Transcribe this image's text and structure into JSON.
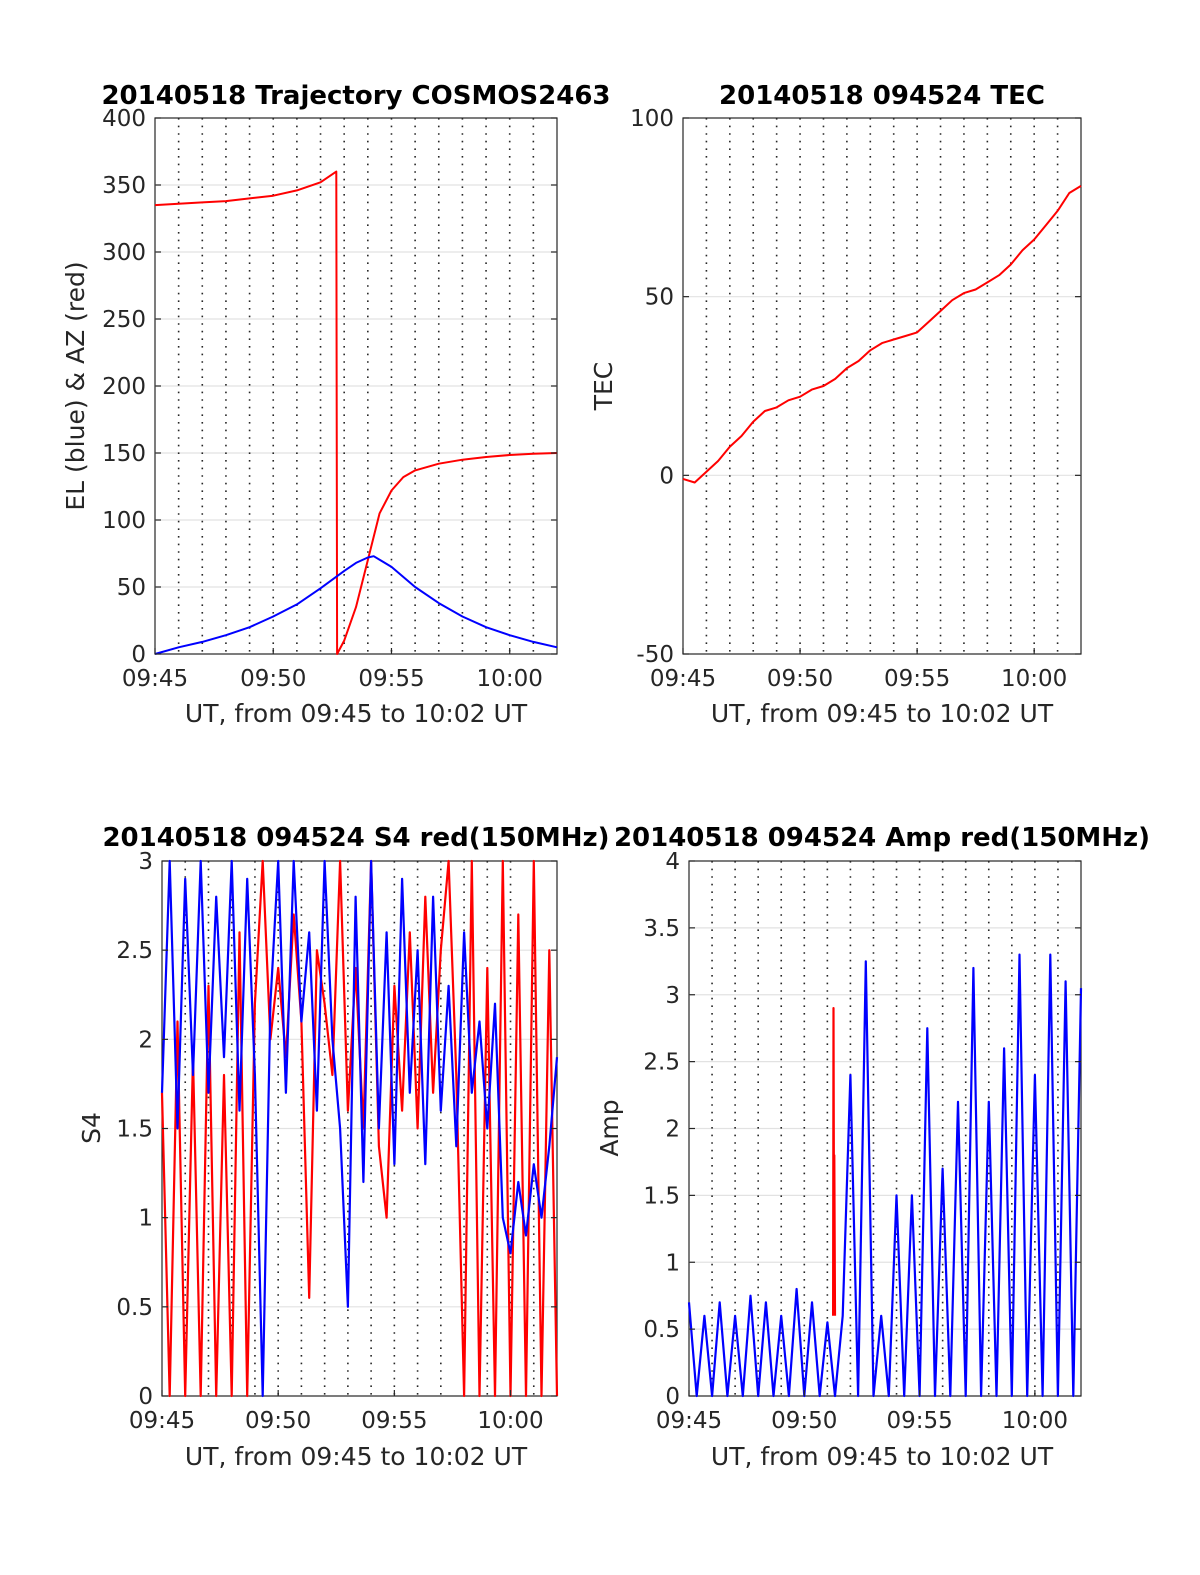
{
  "chart_data": [
    {
      "type": "line",
      "title": "20140518 Trajectory COSMOS2463",
      "xlabel": "UT, from 09:45 to 10:02 UT",
      "ylabel": "EL (blue) & AZ (red)",
      "xlim": [
        "09:45",
        "10:02"
      ],
      "xticks": [
        "09:45",
        "09:50",
        "09:55",
        "10:00"
      ],
      "ylim": [
        0,
        400
      ],
      "yticks": [
        "0",
        "50",
        "100",
        "150",
        "200",
        "250",
        "300",
        "350",
        "400"
      ],
      "grid": true,
      "series": [
        {
          "color": "#ff0000",
          "x": [
            "09:45:00",
            "09:46:00",
            "09:47:00",
            "09:48:00",
            "09:49:00",
            "09:50:00",
            "09:51:00",
            "09:52:00",
            "09:52:40",
            "09:52:42",
            "09:53:00",
            "09:53:30",
            "09:54:00",
            "09:54:30",
            "09:55:00",
            "09:55:30",
            "09:56:00",
            "09:57:00",
            "09:58:00",
            "09:59:00",
            "10:00:00",
            "10:01:00",
            "10:02:00"
          ],
          "values": [
            335,
            336,
            337,
            338,
            340,
            342,
            346,
            352,
            360,
            0,
            10,
            35,
            70,
            105,
            122,
            132,
            137,
            142,
            145,
            147,
            148.5,
            149.5,
            150
          ]
        },
        {
          "color": "#0000ff",
          "x": [
            "09:45:00",
            "09:46:00",
            "09:47:00",
            "09:48:00",
            "09:49:00",
            "09:50:00",
            "09:51:00",
            "09:52:00",
            "09:53:00",
            "09:53:30",
            "09:54:00",
            "09:54:15",
            "09:55:00",
            "09:56:00",
            "09:57:00",
            "09:58:00",
            "09:59:00",
            "10:00:00",
            "10:01:00",
            "10:02:00"
          ],
          "values": [
            0,
            5,
            9,
            14,
            20,
            28,
            37,
            49,
            62,
            68,
            72,
            73,
            65,
            50,
            38,
            28,
            20,
            14,
            9,
            5
          ]
        }
      ]
    },
    {
      "type": "line",
      "title": "20140518 094524 TEC",
      "xlabel": "UT, from 09:45 to 10:02 UT",
      "ylabel": "TEC",
      "xlim": [
        "09:45",
        "10:02"
      ],
      "xticks": [
        "09:45",
        "09:50",
        "09:55",
        "10:00"
      ],
      "ylim": [
        -50,
        100
      ],
      "yticks": [
        "-50",
        "0",
        "50",
        "100"
      ],
      "grid": true,
      "series": [
        {
          "color": "#ff0000",
          "x": [
            "09:45:00",
            "09:45:30",
            "09:46:00",
            "09:46:30",
            "09:47:00",
            "09:47:30",
            "09:48:00",
            "09:48:30",
            "09:49:00",
            "09:49:30",
            "09:50:00",
            "09:50:30",
            "09:51:00",
            "09:51:30",
            "09:52:00",
            "09:52:30",
            "09:53:00",
            "09:53:30",
            "09:54:00",
            "09:54:30",
            "09:55:00",
            "09:55:30",
            "09:56:00",
            "09:56:30",
            "09:57:00",
            "09:57:30",
            "09:58:00",
            "09:58:30",
            "09:59:00",
            "09:59:30",
            "10:00:00",
            "10:00:30",
            "10:01:00",
            "10:01:30",
            "10:02:00"
          ],
          "values": [
            -1,
            -2,
            1,
            4,
            8,
            11,
            15,
            18,
            19,
            21,
            22,
            24,
            25,
            27,
            30,
            32,
            35,
            37,
            38,
            39,
            40,
            43,
            46,
            49,
            51,
            52,
            54,
            56,
            59,
            63,
            66,
            70,
            74,
            79,
            81
          ]
        }
      ]
    },
    {
      "type": "line",
      "title": "20140518 094524 S4 red(150MHz)",
      "xlabel": "UT, from 09:45 to 10:02 UT",
      "ylabel": "S4",
      "xlim": [
        "09:45",
        "10:02"
      ],
      "xticks": [
        "09:45",
        "09:50",
        "09:55",
        "10:00"
      ],
      "ylim": [
        0,
        3
      ],
      "yticks": [
        "0",
        "0.5",
        "1",
        "1.5",
        "2",
        "2.5",
        "3"
      ],
      "grid": true,
      "series": [
        {
          "color": "#ff0000",
          "x": [
            "09:45:00",
            "09:45:20",
            "09:45:40",
            "09:46:00",
            "09:46:20",
            "09:46:40",
            "09:47:00",
            "09:47:20",
            "09:47:40",
            "09:48:00",
            "09:48:20",
            "09:48:40",
            "09:49:00",
            "09:49:20",
            "09:49:40",
            "09:50:00",
            "09:50:20",
            "09:50:40",
            "09:51:00",
            "09:51:20",
            "09:51:40",
            "09:52:00",
            "09:52:20",
            "09:52:40",
            "09:53:00",
            "09:53:20",
            "09:53:40",
            "09:54:00",
            "09:54:20",
            "09:54:40",
            "09:55:00",
            "09:55:20",
            "09:55:40",
            "09:56:00",
            "09:56:20",
            "09:56:40",
            "09:57:00",
            "09:57:20",
            "09:57:40",
            "09:58:00",
            "09:58:20",
            "09:58:40",
            "09:59:00",
            "09:59:20",
            "09:59:40",
            "10:00:00",
            "10:00:20",
            "10:00:40",
            "10:01:00",
            "10:01:20",
            "10:01:40",
            "10:02:00"
          ],
          "values": [
            1.7,
            0,
            2.1,
            0,
            1.9,
            0,
            2.3,
            0,
            1.8,
            0,
            2.6,
            0,
            2.2,
            3,
            2.0,
            2.4,
            1.9,
            2.7,
            2.1,
            0.55,
            2.5,
            2.2,
            1.8,
            3,
            1.6,
            2.4,
            1.5,
            3,
            1.4,
            1.0,
            2.3,
            1.6,
            2.6,
            1.5,
            2.8,
            1.7,
            2.5,
            3,
            1.8,
            0,
            3,
            0,
            2.4,
            0,
            3,
            0,
            2.7,
            0,
            3,
            0,
            2.5,
            0
          ]
        },
        {
          "color": "#0000ff",
          "x": [
            "09:45:00",
            "09:45:20",
            "09:45:40",
            "09:46:00",
            "09:46:20",
            "09:46:40",
            "09:47:00",
            "09:47:20",
            "09:47:40",
            "09:48:00",
            "09:48:20",
            "09:48:40",
            "09:49:00",
            "09:49:20",
            "09:49:40",
            "09:50:00",
            "09:50:20",
            "09:50:40",
            "09:51:00",
            "09:51:20",
            "09:51:40",
            "09:52:00",
            "09:52:20",
            "09:52:40",
            "09:53:00",
            "09:53:20",
            "09:53:40",
            "09:54:00",
            "09:54:20",
            "09:54:40",
            "09:55:00",
            "09:55:20",
            "09:55:40",
            "09:56:00",
            "09:56:20",
            "09:56:40",
            "09:57:00",
            "09:57:20",
            "09:57:40",
            "09:58:00",
            "09:58:20",
            "09:58:40",
            "09:59:00",
            "09:59:20",
            "09:59:40",
            "10:00:00",
            "10:00:20",
            "10:00:40",
            "10:01:00",
            "10:01:20",
            "10:01:40",
            "10:02:00"
          ],
          "values": [
            1.7,
            3,
            1.5,
            2.9,
            1.8,
            3,
            1.7,
            2.8,
            1.9,
            3,
            1.6,
            2.9,
            1.8,
            0,
            2.2,
            3,
            1.7,
            3,
            2.1,
            2.6,
            1.6,
            3,
            2.0,
            1.5,
            0.5,
            2.8,
            1.2,
            3,
            1.5,
            2.6,
            1.3,
            2.9,
            1.7,
            2.5,
            1.3,
            2.8,
            1.6,
            2.3,
            1.4,
            2.6,
            1.7,
            2.1,
            1.5,
            2.2,
            1.0,
            0.8,
            1.2,
            0.9,
            1.3,
            1.0,
            1.4,
            1.9
          ]
        }
      ]
    },
    {
      "type": "line",
      "title": "20140518 094524 Amp red(150MHz)",
      "xlabel": "UT, from 09:45 to 10:02 UT",
      "ylabel": "Amp",
      "xlim": [
        "09:45",
        "10:02"
      ],
      "xticks": [
        "09:45",
        "09:50",
        "09:55",
        "10:00"
      ],
      "ylim": [
        0,
        4
      ],
      "yticks": [
        "0",
        "0.5",
        "1",
        "1.5",
        "2",
        "2.5",
        "3",
        "3.5",
        "4"
      ],
      "grid": true,
      "series": [
        {
          "color": "#ff0000",
          "x": [
            "09:51:15",
            "09:51:16",
            "09:51:17",
            "09:51:18",
            "09:51:20"
          ],
          "values": [
            0.6,
            2.9,
            1.5,
            1.8,
            0.6
          ]
        },
        {
          "color": "#0000ff",
          "x": [
            "09:45:00",
            "09:45:20",
            "09:45:40",
            "09:46:00",
            "09:46:20",
            "09:46:40",
            "09:47:00",
            "09:47:20",
            "09:47:40",
            "09:48:00",
            "09:48:20",
            "09:48:40",
            "09:49:00",
            "09:49:20",
            "09:49:40",
            "09:50:00",
            "09:50:20",
            "09:50:40",
            "09:51:00",
            "09:51:20",
            "09:51:40",
            "09:52:00",
            "09:52:20",
            "09:52:40",
            "09:53:00",
            "09:53:20",
            "09:53:40",
            "09:54:00",
            "09:54:20",
            "09:54:40",
            "09:55:00",
            "09:55:20",
            "09:55:40",
            "09:56:00",
            "09:56:20",
            "09:56:40",
            "09:57:00",
            "09:57:20",
            "09:57:40",
            "09:58:00",
            "09:58:20",
            "09:58:40",
            "09:59:00",
            "09:59:20",
            "09:59:40",
            "10:00:00",
            "10:00:20",
            "10:00:40",
            "10:01:00",
            "10:01:20",
            "10:01:40",
            "10:02:00"
          ],
          "values": [
            0.7,
            0,
            0.6,
            0,
            0.7,
            0,
            0.6,
            0,
            0.75,
            0,
            0.7,
            0,
            0.6,
            0,
            0.8,
            0,
            0.7,
            0,
            0.55,
            0,
            0.6,
            2.4,
            0,
            3.25,
            0,
            0.6,
            0,
            1.5,
            0,
            1.5,
            0,
            2.75,
            0,
            1.7,
            0,
            2.2,
            0,
            3.2,
            0,
            2.2,
            0,
            2.6,
            0,
            3.3,
            0,
            2.4,
            0,
            3.3,
            0,
            3.1,
            0,
            3.05
          ]
        }
      ]
    }
  ]
}
